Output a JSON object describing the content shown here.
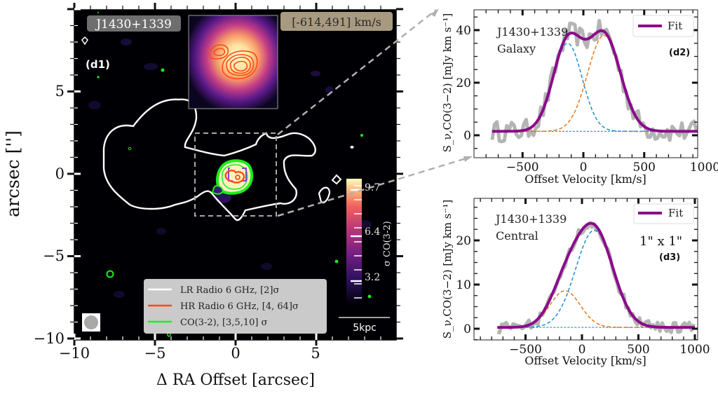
{
  "chart_data": [
    {
      "type": "heatmap",
      "panel": "(d1)",
      "object_label": "J1430+1339",
      "velocity_range_label": "[-614,491] km/s",
      "xlabel": "Δ RA Offset [arcsec]",
      "ylabel": "arcsec ['']",
      "xlim": [
        -10,
        10
      ],
      "ylim": [
        -10,
        10
      ],
      "xticks": [
        "−10",
        "−5",
        "0",
        "5"
      ],
      "yticks": [
        "5",
        "0",
        "−5",
        "−10"
      ],
      "colorbar": {
        "label": "σ CO(3-2)",
        "ticks": [
          "9.7",
          "6.4",
          "3.2"
        ],
        "range": [
          1.5,
          10.5
        ]
      },
      "scale_bar": "5kpc",
      "legend": [
        {
          "label": "LR Radio 6 GHz, [2]σ",
          "color": "#ffffff"
        },
        {
          "label": "HR Radio 6 GHz, [4, 64]σ",
          "color": "#ff4b12"
        },
        {
          "label": "CO(3-2), [3,5,10] σ",
          "color": "#19f019"
        }
      ],
      "legend_position": "lower-center"
    },
    {
      "type": "line",
      "panel": "(d2)",
      "title_lines": [
        "J1430+1339",
        "Galaxy"
      ],
      "xlabel": "Offset Velocity [km/s]",
      "ylabel": "S_ν,CO(3−2) [mJy km s⁻¹]",
      "xlim": [
        -900,
        1050
      ],
      "ylim": [
        -7,
        47
      ],
      "xticks": [
        "−500",
        "0",
        "500",
        "1000"
      ],
      "yticks": [
        "0",
        "20",
        "40"
      ],
      "legend": [
        "Fit"
      ],
      "legend_position": "top-right",
      "baseline": 1.5,
      "components": [
        {
          "name": "blue",
          "amp": 33.5,
          "center": -130,
          "sigma": 120,
          "color": "#1f8fd0"
        },
        {
          "name": "orange",
          "amp": 36.5,
          "center": 170,
          "sigma": 135,
          "color": "#e8761a"
        }
      ],
      "fit_color": "#8b0a8b"
    },
    {
      "type": "line",
      "panel": "(d3)",
      "title_lines": [
        "J1430+1339",
        "Central"
      ],
      "aperture_label": "1\" x 1\"",
      "xlabel": "Offset Velocity [km/s]",
      "ylabel": "S_ν,CO(3−2) [mJy km s⁻¹]",
      "xlim": [
        -900,
        1050
      ],
      "ylim": [
        -2,
        29
      ],
      "xticks": [
        "−500",
        "0",
        "500",
        "1000"
      ],
      "yticks": [
        "0",
        "10",
        "20"
      ],
      "legend": [
        "Fit"
      ],
      "legend_position": "top-right",
      "baseline": 0.3,
      "components": [
        {
          "name": "blue",
          "amp": 22,
          "center": 110,
          "sigma": 165,
          "color": "#1f8fd0"
        },
        {
          "name": "orange",
          "amp": 8.3,
          "center": -150,
          "sigma": 135,
          "color": "#e8761a"
        }
      ],
      "fit_color": "#8b0a8b"
    }
  ],
  "labels": {
    "d1": "(d1)",
    "d2": "(d2)",
    "d3": "(d3)",
    "fit": "Fit"
  }
}
